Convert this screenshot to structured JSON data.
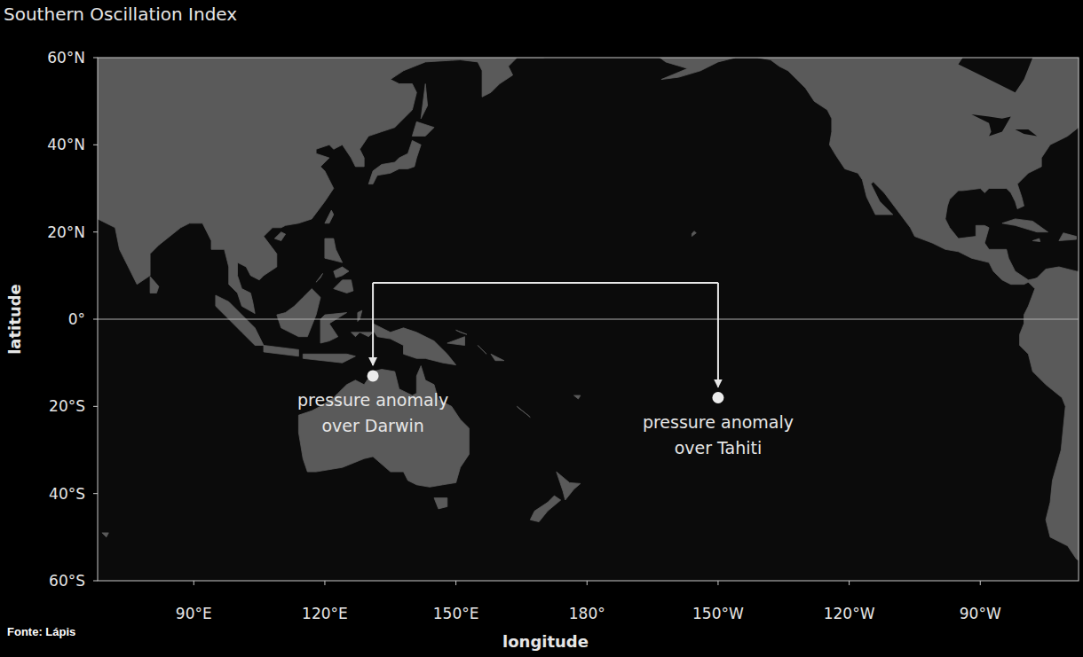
{
  "chart_data": {
    "type": "map",
    "title": "Southern Oscillation Index",
    "x_label": "longitude",
    "y_label": "latitude",
    "source": "Fonte: Lápis",
    "xlim": [
      68,
      292.5
    ],
    "ylim": [
      -60,
      60
    ],
    "xticks": [
      {
        "value": 90,
        "label": "90°E"
      },
      {
        "value": 120,
        "label": "120°E"
      },
      {
        "value": 150,
        "label": "150°E"
      },
      {
        "value": 180,
        "label": "180°"
      },
      {
        "value": 210,
        "label": "150°W"
      },
      {
        "value": 240,
        "label": "120°W"
      },
      {
        "value": 270,
        "label": "90°W"
      }
    ],
    "yticks": [
      {
        "value": -60,
        "label": "60°S"
      },
      {
        "value": -40,
        "label": "40°S"
      },
      {
        "value": -20,
        "label": "20°S"
      },
      {
        "value": 0,
        "label": "0°"
      },
      {
        "value": 20,
        "label": "20°N"
      },
      {
        "value": 40,
        "label": "40°N"
      },
      {
        "value": 60,
        "label": "60°N"
      }
    ],
    "hlines": [
      0
    ],
    "points": [
      {
        "lon": 131,
        "lat": -13,
        "label": [
          "pressure anomaly",
          "over Darwin"
        ]
      },
      {
        "lon": 210,
        "lat": -18,
        "label": [
          "pressure anomaly",
          "over Tahiti"
        ]
      }
    ]
  }
}
